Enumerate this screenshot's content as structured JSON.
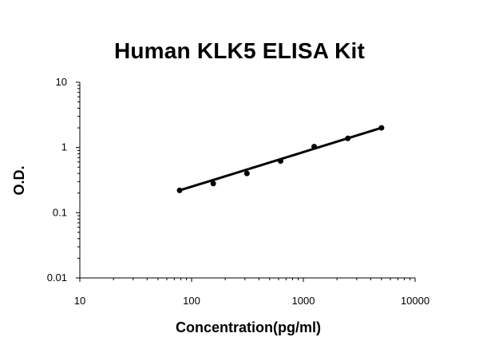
{
  "chart_data": {
    "type": "scatter",
    "title": "Human KLK5 ELISA Kit",
    "xlabel": "Concentration(pg/ml)",
    "ylabel": "O.D.",
    "xscale": "log",
    "yscale": "log",
    "xlim": [
      10,
      10000
    ],
    "ylim": [
      0.01,
      10
    ],
    "xticks": [
      "10",
      "100",
      "1000",
      "10000"
    ],
    "yticks": [
      "0.01",
      "0.1",
      "1",
      "10"
    ],
    "grid": false,
    "legend": "none",
    "series": [
      {
        "points": [
          {
            "x": 78.125,
            "y": 0.22
          },
          {
            "x": 156.25,
            "y": 0.28
          },
          {
            "x": 312.5,
            "y": 0.4
          },
          {
            "x": 625,
            "y": 0.62
          },
          {
            "x": 1250,
            "y": 1.03
          },
          {
            "x": 2500,
            "y": 1.38
          },
          {
            "x": 5000,
            "y": 2.0
          }
        ],
        "fit": {
          "x": [
            78.125,
            5000
          ],
          "y": [
            0.22,
            2.0
          ]
        }
      }
    ],
    "colors": {
      "marker": "#000000",
      "line": "#000000",
      "axis": "#000000"
    }
  }
}
